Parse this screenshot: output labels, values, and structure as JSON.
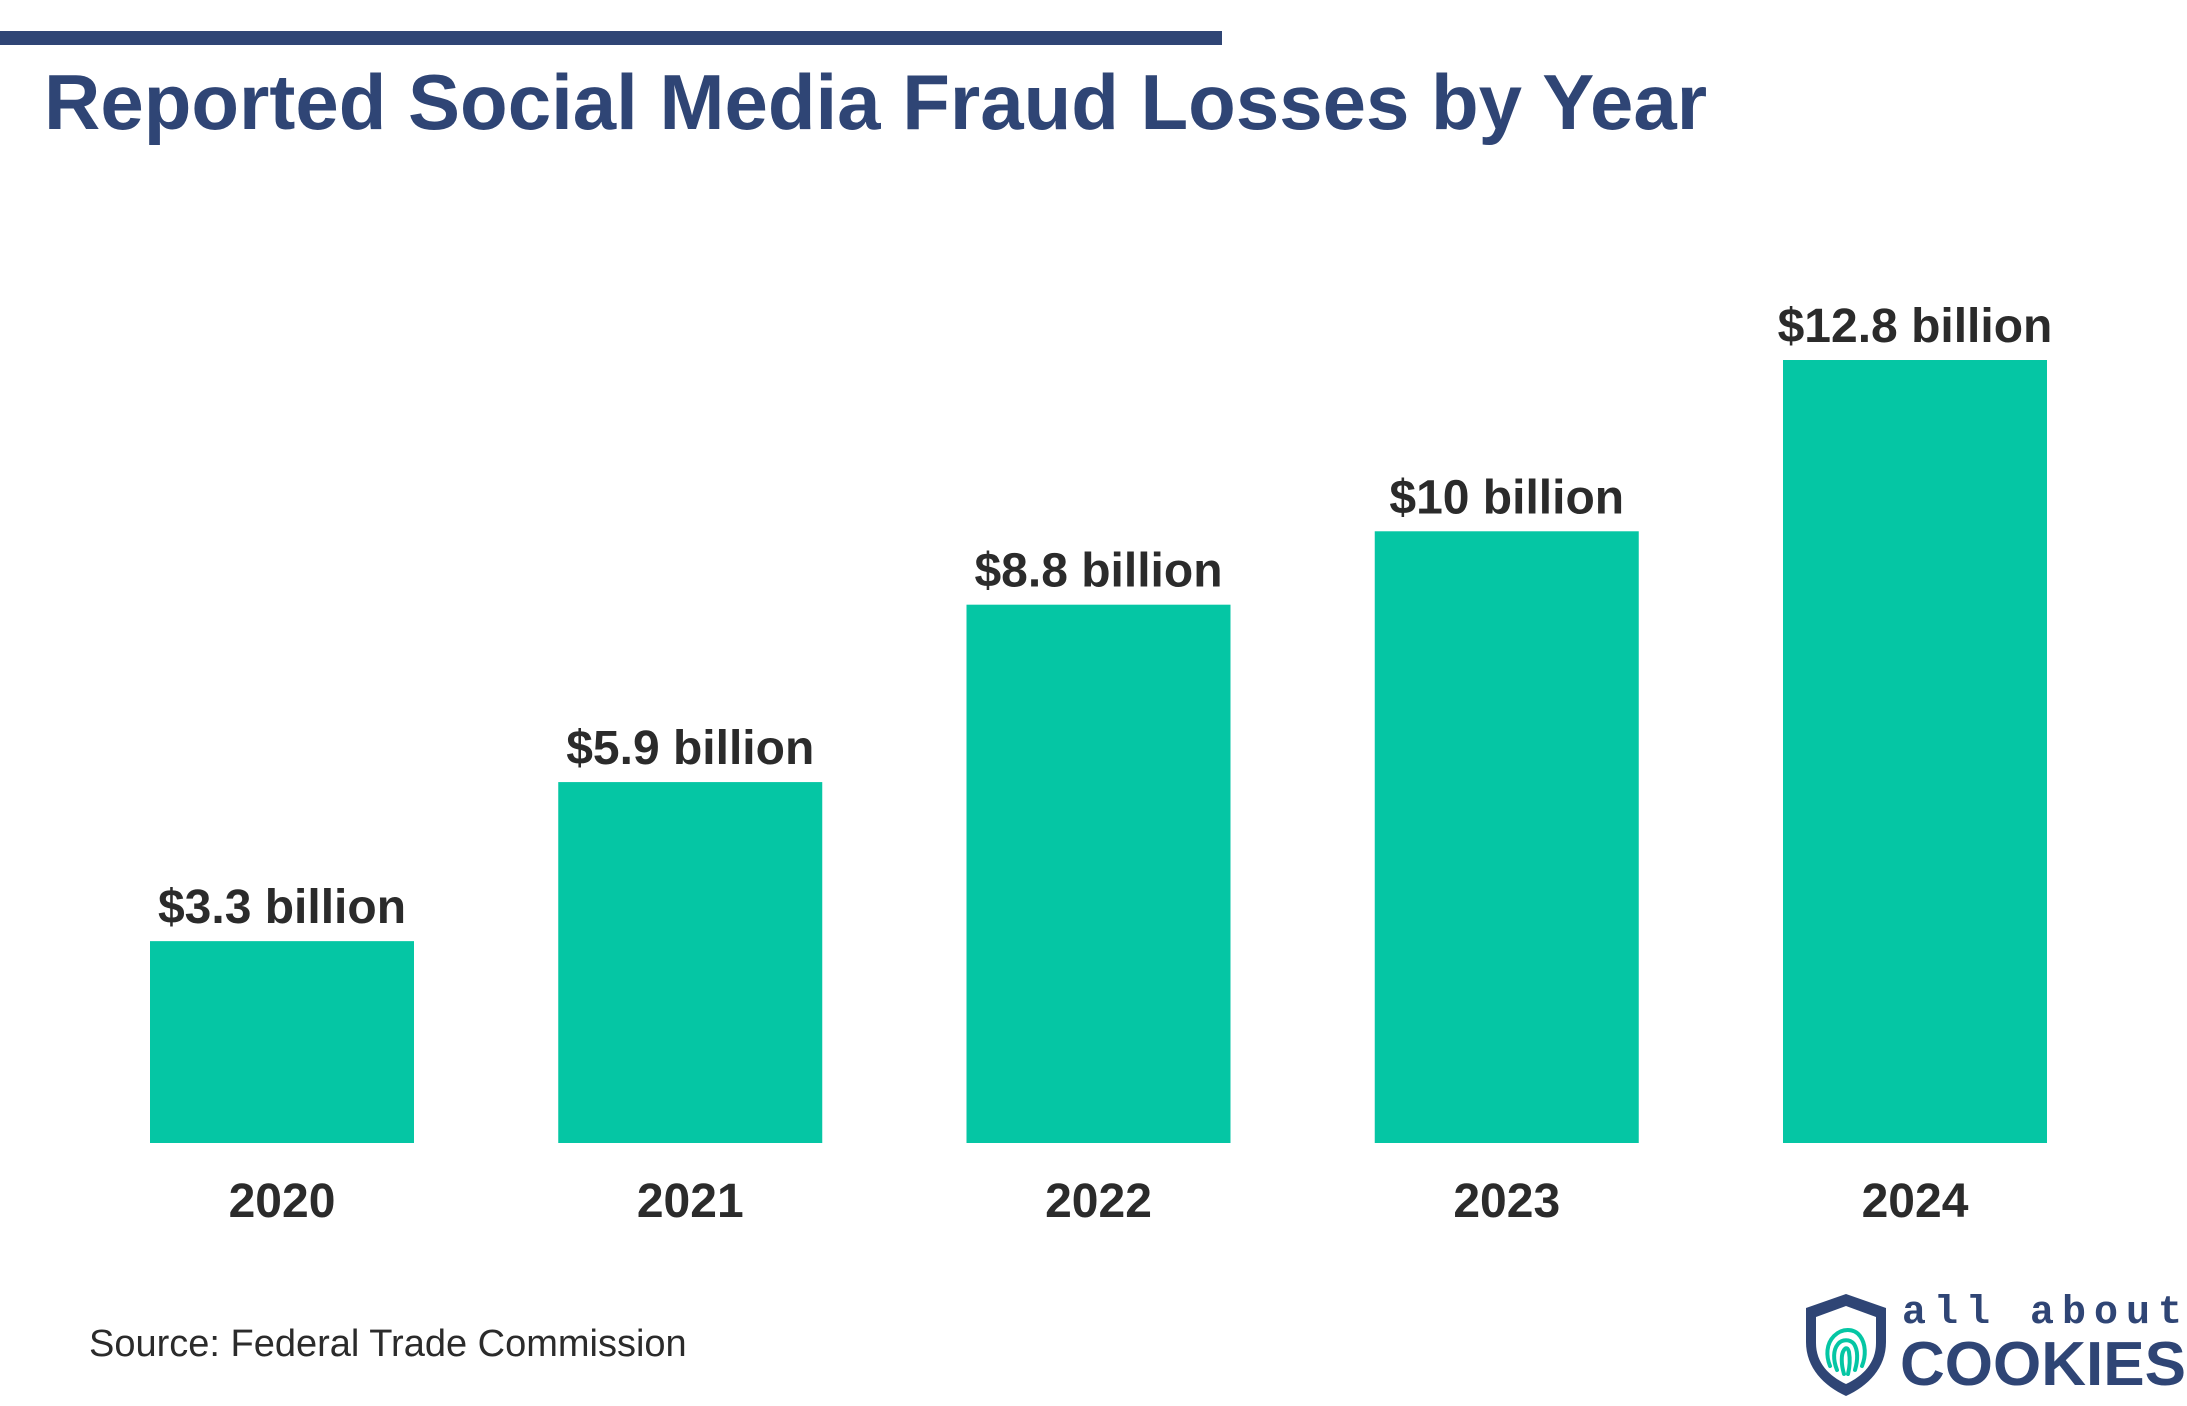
{
  "chart_data": {
    "type": "bar",
    "title": "Reported Social Media Fraud Losses by Year",
    "xlabel": "",
    "ylabel": "",
    "categories": [
      "2020",
      "2021",
      "2022",
      "2023",
      "2024"
    ],
    "values": [
      3.3,
      5.9,
      8.8,
      10,
      12.8
    ],
    "value_labels": [
      "$3.3 billion",
      "$5.9 billion",
      "$8.8 billion",
      "$10 billion",
      "$12.8 billion"
    ],
    "unit": "billion USD",
    "ylim": [
      0,
      12.8
    ],
    "grid": false,
    "legend": "none",
    "bar_color": "#05c6a4"
  },
  "source": "Source: Federal Trade Commission",
  "brand": {
    "line1": "all about",
    "line2": "COOKIES",
    "logo_icon": "shield-fingerprint-icon",
    "color": "#2f4575",
    "accent": "#05c6a4"
  },
  "colors": {
    "title": "#2f4575",
    "rule": "#2f4575",
    "text": "#2b2b2b"
  }
}
